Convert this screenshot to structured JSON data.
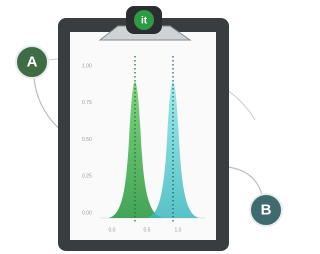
{
  "logo": "it",
  "badges": {
    "a": "A",
    "b": "B"
  },
  "axis": {
    "y_labels": [
      "1.00",
      "0.75",
      "0.50",
      "0.25",
      "0.00"
    ],
    "x_labels": [
      "0.0",
      "0.5",
      "1.0"
    ]
  }
}
